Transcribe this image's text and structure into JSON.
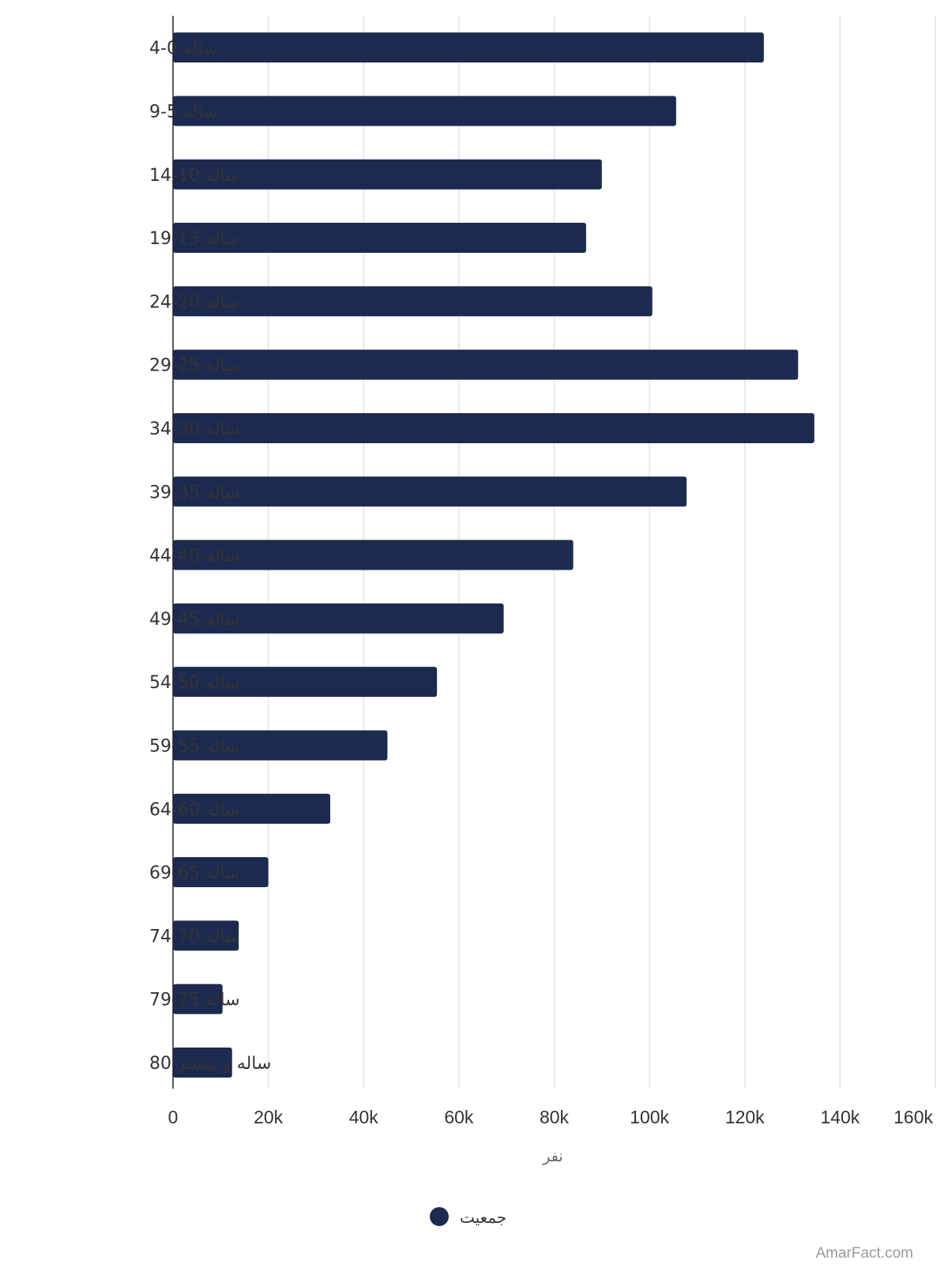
{
  "chart_data": {
    "type": "bar",
    "orientation": "horizontal",
    "categories": [
      "ساله 0-4",
      "ساله 5-9",
      "ساله 10-14",
      "ساله 15-19",
      "ساله 20-24",
      "ساله 25-29",
      "ساله 30-34",
      "ساله 35-39",
      "ساله 40-44",
      "ساله 45-49",
      "ساله 50-54",
      "ساله 55-59",
      "ساله 60-64",
      "ساله 65-69",
      "ساله 70-74",
      "ساله 75-79",
      "ساله و بیشتر 80"
    ],
    "series": [
      {
        "name": "جمعیت",
        "color": "#1c2a4f",
        "values": [
          124000,
          105600,
          90000,
          86700,
          100600,
          131200,
          134600,
          107800,
          84000,
          69400,
          55400,
          45000,
          33000,
          20000,
          13800,
          10400,
          12400
        ]
      }
    ],
    "xlim": [
      0,
      160000
    ],
    "x_ticks": [
      "0",
      "20k",
      "40k",
      "60k",
      "80k",
      "100k",
      "120k",
      "140k",
      "160k"
    ],
    "xlabel": "نفر",
    "grid": "vertical",
    "legend_position": "bottom"
  },
  "watermark": "AmarFact.com"
}
